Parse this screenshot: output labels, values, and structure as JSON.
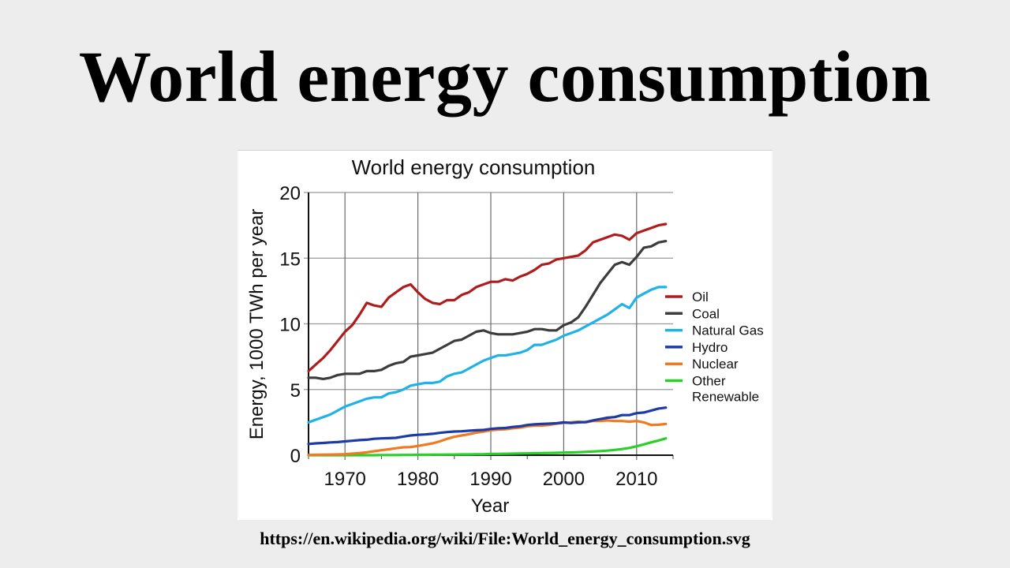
{
  "slide": {
    "title": "World energy consumption",
    "source": "https://en.wikipedia.org/wiki/File:World_energy_consumption.svg"
  },
  "chart_data": {
    "type": "line",
    "title": "World energy consumption",
    "xlabel": "Year",
    "ylabel": "Energy, 1000 TWh per year",
    "xlim": [
      1965,
      2015
    ],
    "ylim": [
      0,
      20
    ],
    "xticks": [
      1970,
      1980,
      1990,
      2000,
      2010
    ],
    "yticks": [
      0,
      5,
      10,
      15,
      20
    ],
    "grid": true,
    "legend_position": "right",
    "x": [
      1965,
      1966,
      1967,
      1968,
      1969,
      1970,
      1971,
      1972,
      1973,
      1974,
      1975,
      1976,
      1977,
      1978,
      1979,
      1980,
      1981,
      1982,
      1983,
      1984,
      1985,
      1986,
      1987,
      1988,
      1989,
      1990,
      1991,
      1992,
      1993,
      1994,
      1995,
      1996,
      1997,
      1998,
      1999,
      2000,
      2001,
      2002,
      2003,
      2004,
      2005,
      2006,
      2007,
      2008,
      2009,
      2010,
      2011,
      2012,
      2013,
      2014
    ],
    "series": [
      {
        "name": "Oil",
        "color": "#b01c1c",
        "values": [
          6.4,
          6.9,
          7.4,
          8.0,
          8.7,
          9.4,
          9.9,
          10.7,
          11.6,
          11.4,
          11.3,
          12.0,
          12.4,
          12.8,
          13.0,
          12.4,
          11.9,
          11.6,
          11.5,
          11.8,
          11.8,
          12.2,
          12.4,
          12.8,
          13.0,
          13.2,
          13.2,
          13.4,
          13.3,
          13.6,
          13.8,
          14.1,
          14.5,
          14.6,
          14.9,
          15.0,
          15.1,
          15.2,
          15.6,
          16.2,
          16.4,
          16.6,
          16.8,
          16.7,
          16.4,
          16.9,
          17.1,
          17.3,
          17.5,
          17.6
        ]
      },
      {
        "name": "Coal",
        "color": "#3c3c3c",
        "values": [
          5.9,
          5.9,
          5.8,
          5.9,
          6.1,
          6.2,
          6.2,
          6.2,
          6.4,
          6.4,
          6.5,
          6.8,
          7.0,
          7.1,
          7.5,
          7.6,
          7.7,
          7.8,
          8.1,
          8.4,
          8.7,
          8.8,
          9.1,
          9.4,
          9.5,
          9.3,
          9.2,
          9.2,
          9.2,
          9.3,
          9.4,
          9.6,
          9.6,
          9.5,
          9.5,
          9.9,
          10.1,
          10.5,
          11.3,
          12.2,
          13.1,
          13.8,
          14.5,
          14.7,
          14.5,
          15.1,
          15.8,
          15.9,
          16.2,
          16.3
        ]
      },
      {
        "name": "Natural Gas",
        "color": "#1fb2e8",
        "values": [
          2.5,
          2.7,
          2.9,
          3.1,
          3.4,
          3.7,
          3.9,
          4.1,
          4.3,
          4.4,
          4.4,
          4.7,
          4.8,
          5.0,
          5.3,
          5.4,
          5.5,
          5.5,
          5.6,
          6.0,
          6.2,
          6.3,
          6.6,
          6.9,
          7.2,
          7.4,
          7.6,
          7.6,
          7.7,
          7.8,
          8.0,
          8.4,
          8.4,
          8.6,
          8.8,
          9.1,
          9.3,
          9.5,
          9.8,
          10.1,
          10.4,
          10.7,
          11.1,
          11.5,
          11.2,
          12.0,
          12.3,
          12.6,
          12.8,
          12.8
        ]
      },
      {
        "name": "Hydro",
        "color": "#1c3aa8",
        "values": [
          0.85,
          0.9,
          0.93,
          0.97,
          1.0,
          1.05,
          1.1,
          1.15,
          1.18,
          1.25,
          1.28,
          1.3,
          1.32,
          1.42,
          1.5,
          1.55,
          1.58,
          1.63,
          1.7,
          1.76,
          1.8,
          1.82,
          1.86,
          1.9,
          1.92,
          2.0,
          2.05,
          2.07,
          2.15,
          2.2,
          2.3,
          2.35,
          2.38,
          2.4,
          2.43,
          2.5,
          2.45,
          2.5,
          2.52,
          2.65,
          2.75,
          2.85,
          2.9,
          3.05,
          3.05,
          3.2,
          3.25,
          3.4,
          3.55,
          3.62
        ]
      },
      {
        "name": "Nuclear",
        "color": "#f07a22",
        "values": [
          0.02,
          0.03,
          0.04,
          0.05,
          0.06,
          0.08,
          0.12,
          0.16,
          0.22,
          0.3,
          0.38,
          0.45,
          0.53,
          0.6,
          0.62,
          0.7,
          0.8,
          0.9,
          1.05,
          1.25,
          1.4,
          1.5,
          1.6,
          1.72,
          1.8,
          1.9,
          1.95,
          1.97,
          2.05,
          2.1,
          2.2,
          2.25,
          2.25,
          2.3,
          2.4,
          2.45,
          2.5,
          2.55,
          2.5,
          2.6,
          2.6,
          2.65,
          2.6,
          2.6,
          2.55,
          2.6,
          2.5,
          2.3,
          2.32,
          2.38
        ]
      },
      {
        "name": "Other Renewable",
        "color": "#28d028",
        "values": [
          0.0,
          0.0,
          0.0,
          0.0,
          0.0,
          0.0,
          0.0,
          0.0,
          0.0,
          0.0,
          0.01,
          0.01,
          0.01,
          0.02,
          0.02,
          0.03,
          0.03,
          0.04,
          0.04,
          0.05,
          0.05,
          0.06,
          0.06,
          0.07,
          0.07,
          0.1,
          0.1,
          0.11,
          0.12,
          0.13,
          0.14,
          0.15,
          0.16,
          0.17,
          0.18,
          0.2,
          0.21,
          0.23,
          0.25,
          0.28,
          0.31,
          0.35,
          0.4,
          0.47,
          0.55,
          0.68,
          0.82,
          0.98,
          1.12,
          1.28
        ]
      }
    ],
    "legend": [
      "Oil",
      "Coal",
      "Natural Gas",
      "Hydro",
      "Nuclear",
      "Other Renewable"
    ]
  }
}
